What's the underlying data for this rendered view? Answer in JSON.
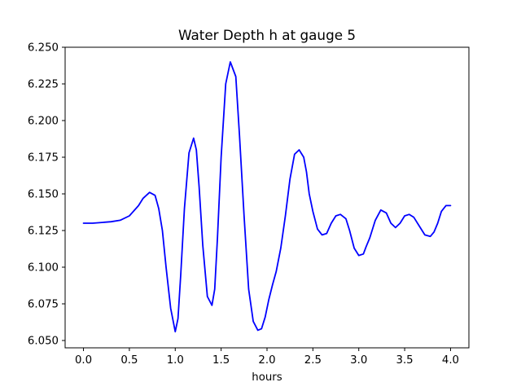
{
  "chart_data": {
    "type": "line",
    "title": "Water Depth h at gauge 5",
    "xlabel": "hours",
    "ylabel": "",
    "xlim": [
      -0.2,
      4.2
    ],
    "ylim": [
      6.045,
      6.25
    ],
    "grid": false,
    "x_ticks": [
      0.0,
      0.5,
      1.0,
      1.5,
      2.0,
      2.5,
      3.0,
      3.5,
      4.0
    ],
    "x_tick_labels": [
      "0.0",
      "0.5",
      "1.0",
      "1.5",
      "2.0",
      "2.5",
      "3.0",
      "3.5",
      "4.0"
    ],
    "y_ticks": [
      6.05,
      6.075,
      6.1,
      6.125,
      6.15,
      6.175,
      6.2,
      6.225,
      6.25
    ],
    "y_tick_labels": [
      "6.050",
      "6.075",
      "6.100",
      "6.125",
      "6.150",
      "6.175",
      "6.200",
      "6.225",
      "6.250"
    ],
    "series": [
      {
        "color": "#0000ff",
        "x": [
          0.0,
          0.1,
          0.2,
          0.3,
          0.4,
          0.5,
          0.6,
          0.65,
          0.72,
          0.78,
          0.82,
          0.86,
          0.9,
          0.95,
          1.0,
          1.03,
          1.06,
          1.1,
          1.15,
          1.2,
          1.23,
          1.26,
          1.3,
          1.35,
          1.4,
          1.43,
          1.46,
          1.5,
          1.55,
          1.6,
          1.66,
          1.7,
          1.75,
          1.8,
          1.85,
          1.9,
          1.94,
          1.98,
          2.02,
          2.06,
          2.1,
          2.15,
          2.2,
          2.25,
          2.3,
          2.35,
          2.4,
          2.43,
          2.46,
          2.5,
          2.55,
          2.6,
          2.65,
          2.7,
          2.75,
          2.8,
          2.86,
          2.9,
          2.95,
          3.0,
          3.05,
          3.08,
          3.12,
          3.18,
          3.24,
          3.3,
          3.35,
          3.4,
          3.45,
          3.5,
          3.55,
          3.6,
          3.66,
          3.72,
          3.78,
          3.82,
          3.86,
          3.9,
          3.95,
          4.0
        ],
        "y": [
          6.13,
          6.13,
          6.1305,
          6.131,
          6.132,
          6.135,
          6.142,
          6.147,
          6.151,
          6.149,
          6.14,
          6.125,
          6.1,
          6.072,
          6.056,
          6.065,
          6.095,
          6.14,
          6.178,
          6.188,
          6.18,
          6.155,
          6.115,
          6.08,
          6.074,
          6.085,
          6.12,
          6.175,
          6.225,
          6.24,
          6.23,
          6.19,
          6.135,
          6.085,
          6.063,
          6.057,
          6.058,
          6.066,
          6.078,
          6.088,
          6.097,
          6.113,
          6.135,
          6.16,
          6.177,
          6.18,
          6.175,
          6.165,
          6.15,
          6.138,
          6.126,
          6.122,
          6.123,
          6.13,
          6.135,
          6.136,
          6.133,
          6.125,
          6.113,
          6.108,
          6.109,
          6.114,
          6.12,
          6.132,
          6.139,
          6.137,
          6.13,
          6.127,
          6.13,
          6.135,
          6.136,
          6.134,
          6.128,
          6.122,
          6.121,
          6.124,
          6.13,
          6.138,
          6.142,
          6.142
        ]
      }
    ]
  }
}
